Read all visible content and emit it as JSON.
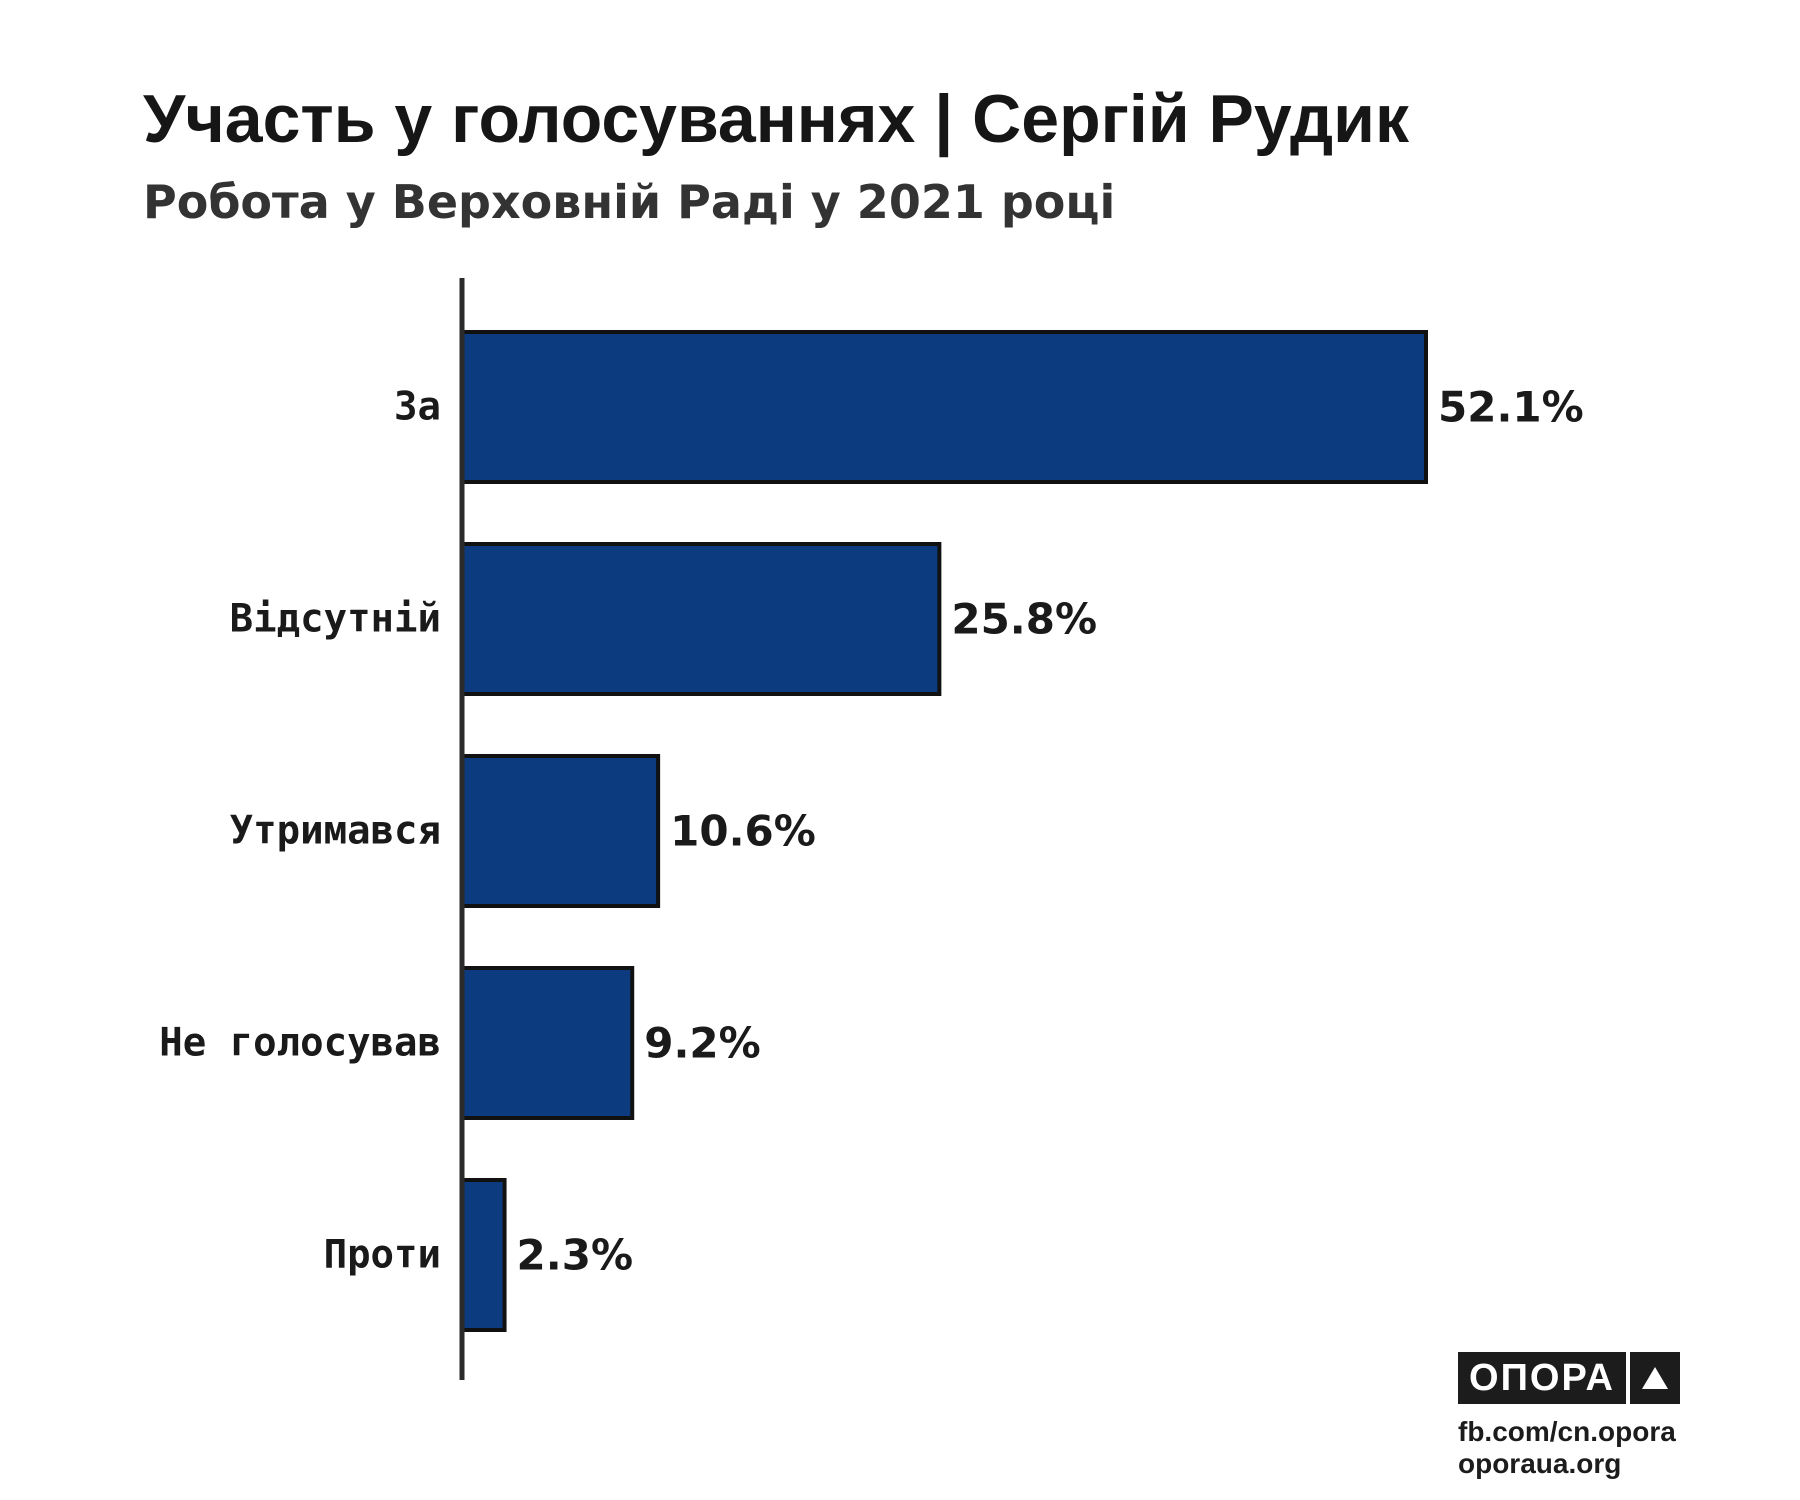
{
  "chart_data": {
    "type": "bar",
    "orientation": "horizontal",
    "title": "Участь у голосуваннях | Сергій Рудик",
    "subtitle": "Робота у Верховній Раді у 2021 році",
    "categories": [
      "За",
      "Відсутній",
      "Утримався",
      "Не голосував",
      "Проти"
    ],
    "values": [
      52.1,
      25.8,
      10.6,
      9.2,
      2.3
    ],
    "value_labels": [
      "52.1%",
      "25.8%",
      "10.6%",
      "9.2%",
      "2.3%"
    ],
    "unit": "%",
    "xlim": [
      0,
      52.1
    ],
    "grid": false,
    "legend": "none",
    "bar_color": "#0d3b80",
    "bar_outline_color": "#111111",
    "axis_color": "#2a2a2a"
  },
  "branding": {
    "logo_text": "ОПОРА",
    "logo_icon": "triangle-icon",
    "link_facebook": "fb.com/cn.opora",
    "link_site": "oporaua.org"
  }
}
